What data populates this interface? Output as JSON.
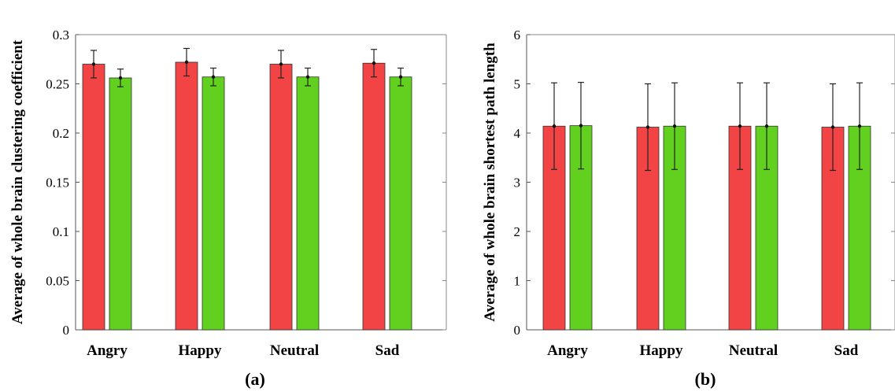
{
  "figure": {
    "panel_labels": [
      "(a)",
      "(b)"
    ]
  },
  "colors": {
    "series_1": "#f24444",
    "series_2": "#62d01f",
    "errorbar": "#222222"
  },
  "chart_data": [
    {
      "type": "bar",
      "panel": "(a)",
      "title": "",
      "xlabel": "",
      "ylabel": "Average of whole brain clustering coefficient",
      "categories": [
        "Angry",
        "Happy",
        "Neutral",
        "Sad"
      ],
      "ylim": [
        0,
        0.3
      ],
      "yticks": [
        0,
        0.05,
        0.1,
        0.15,
        0.2,
        0.25,
        0.3
      ],
      "ytick_labels": [
        "0",
        "0.05",
        "0.1",
        "0.15",
        "0.2",
        "0.25",
        "0.3"
      ],
      "grid": false,
      "series": [
        {
          "color": "#f24444",
          "values": [
            0.27,
            0.272,
            0.27,
            0.271
          ],
          "errors": [
            0.014,
            0.014,
            0.014,
            0.014
          ]
        },
        {
          "color": "#62d01f",
          "values": [
            0.256,
            0.257,
            0.257,
            0.257
          ],
          "errors": [
            0.009,
            0.009,
            0.009,
            0.009
          ]
        }
      ]
    },
    {
      "type": "bar",
      "panel": "(b)",
      "title": "",
      "xlabel": "",
      "ylabel": "Average of whole brain shortest path length",
      "categories": [
        "Angry",
        "Happy",
        "Neutral",
        "Sad"
      ],
      "ylim": [
        0,
        6
      ],
      "yticks": [
        0,
        1,
        2,
        3,
        4,
        5,
        6
      ],
      "ytick_labels": [
        "0",
        "1",
        "2",
        "3",
        "4",
        "5",
        "6"
      ],
      "grid": false,
      "series": [
        {
          "color": "#f24444",
          "values": [
            4.14,
            4.12,
            4.14,
            4.12
          ],
          "errors": [
            0.88,
            0.88,
            0.88,
            0.88
          ]
        },
        {
          "color": "#62d01f",
          "values": [
            4.15,
            4.14,
            4.14,
            4.14
          ],
          "errors": [
            0.88,
            0.88,
            0.88,
            0.88
          ]
        }
      ]
    }
  ]
}
